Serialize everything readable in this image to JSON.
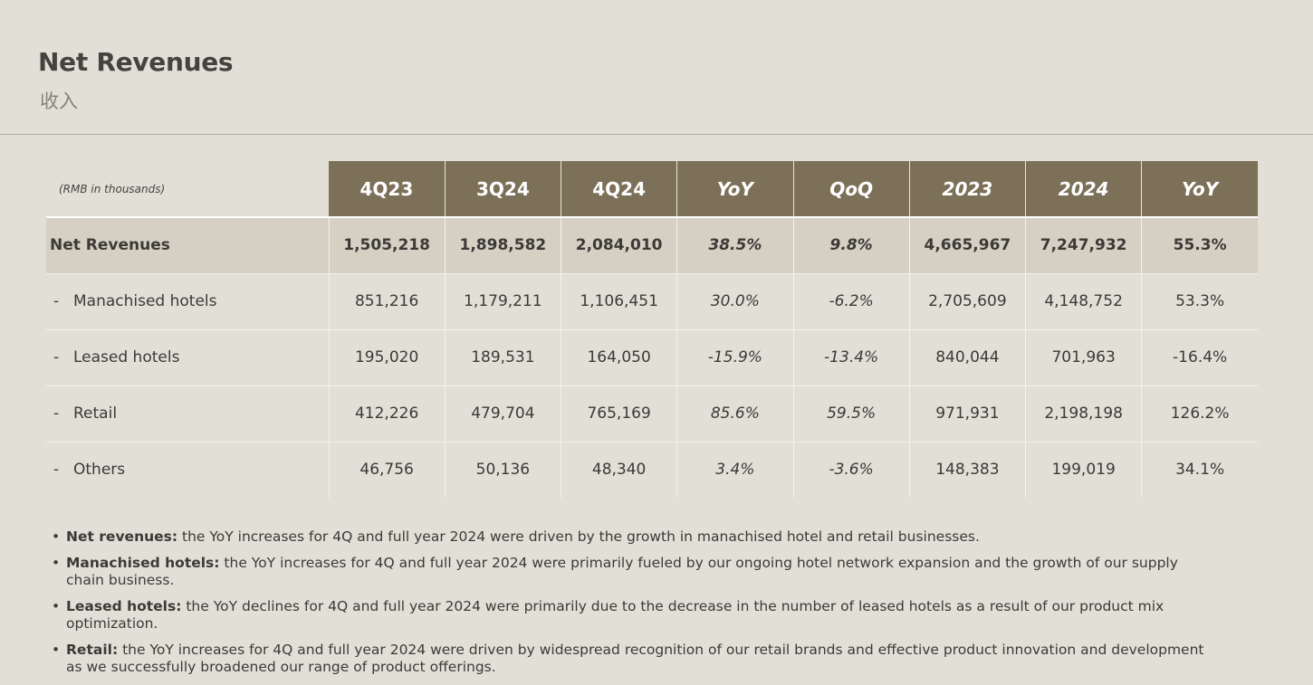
{
  "title": "Net Revenues",
  "subtitle": "收入",
  "table": {
    "unit_label": "(RMB in thousands)",
    "headers": [
      "4Q23",
      "3Q24",
      "4Q24",
      "YoY",
      "QoQ",
      "2023",
      "2024",
      "YoY"
    ],
    "rows": [
      {
        "label": "Net Revenues",
        "dash": "",
        "values": [
          "1,505,218",
          "1,898,582",
          "2,084,010",
          "38.5%",
          "9.8%",
          "4,665,967",
          "7,247,932",
          "55.3%"
        ]
      },
      {
        "label": "Manachised hotels",
        "dash": "-",
        "values": [
          "851,216",
          "1,179,211",
          "1,106,451",
          "30.0%",
          "-6.2%",
          "2,705,609",
          "4,148,752",
          "53.3%"
        ]
      },
      {
        "label": "Leased hotels",
        "dash": "-",
        "values": [
          "195,020",
          "189,531",
          "164,050",
          "-15.9%",
          "-13.4%",
          "840,044",
          "701,963",
          "-16.4%"
        ]
      },
      {
        "label": "Retail",
        "dash": "-",
        "values": [
          "412,226",
          "479,704",
          "765,169",
          "85.6%",
          "59.5%",
          "971,931",
          "2,198,198",
          "126.2%"
        ]
      },
      {
        "label": "Others",
        "dash": "-",
        "values": [
          "46,756",
          "50,136",
          "48,340",
          "3.4%",
          "-3.6%",
          "148,383",
          "199,019",
          "34.1%"
        ]
      }
    ]
  },
  "notes": [
    {
      "bold": "Net revenues:",
      "text": " the YoY increases for 4Q and full year 2024 were driven by the growth in manachised hotel and retail businesses."
    },
    {
      "bold": "Manachised hotels:",
      "text": " the YoY increases for 4Q and full year 2024 were primarily fueled by our ongoing hotel network expansion and the growth of our supply chain business."
    },
    {
      "bold": "Leased hotels:",
      "text": " the YoY declines for 4Q and full year 2024 were primarily due to the decrease in the number of leased hotels as a result of our product mix optimization."
    },
    {
      "bold": "Retail:",
      "text": " the YoY increases for 4Q and full year 2024 were driven by widespread recognition of our retail brands and effective product innovation and development as we successfully broadened our range of product offerings."
    }
  ]
}
